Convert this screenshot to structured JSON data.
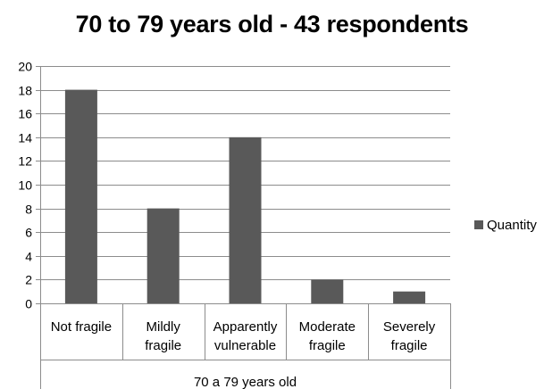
{
  "chart_data": {
    "type": "bar",
    "title": "70 to 79 years old - 43 respondents",
    "categories": [
      [
        "Not fragile"
      ],
      [
        "Mildly",
        "fragile"
      ],
      [
        "Apparently",
        "vulnerable"
      ],
      [
        "Moderate",
        "fragile"
      ],
      [
        "Severely",
        "fragile"
      ]
    ],
    "series": [
      {
        "name": "Quantity",
        "values": [
          18,
          8,
          14,
          2,
          1
        ],
        "color": "#595959"
      }
    ],
    "group_label": "70 a 79 years old",
    "xlabel": "",
    "ylabel": "",
    "ylim": [
      0,
      20
    ],
    "ytick_step": 2,
    "grid": true,
    "legend_position": "right"
  }
}
